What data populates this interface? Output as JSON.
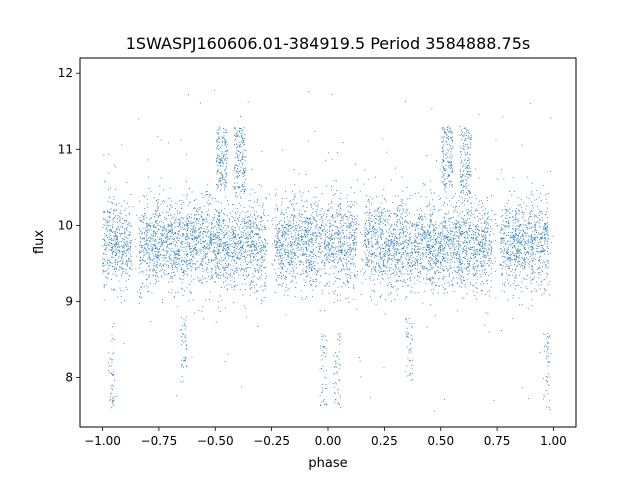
{
  "chart_data": {
    "type": "scatter",
    "title": "1SWASPJ160606.01-384919.5 Period 3584888.75s",
    "xlabel": "phase",
    "ylabel": "flux",
    "xlim": [
      -1.1,
      1.1
    ],
    "ylim": [
      7.35,
      12.2
    ],
    "xticks": [
      -1.0,
      -0.75,
      -0.5,
      -0.25,
      0.0,
      0.25,
      0.5,
      0.75,
      1.0
    ],
    "xtick_labels": [
      "−1.00",
      "−0.75",
      "−0.50",
      "−0.25",
      "0.00",
      "0.25",
      "0.50",
      "0.75",
      "1.00"
    ],
    "yticks": [
      8,
      9,
      10,
      11,
      12
    ],
    "ytick_labels": [
      "8",
      "9",
      "10",
      "11",
      "12"
    ],
    "grid": false,
    "marker_color": "#1f77b4",
    "series": [
      {
        "x_range": [
          -1.0,
          1.0
        ],
        "baseline_flux": 9.75,
        "scatter_flux": 0.3,
        "flux_min": 7.55,
        "flux_max": 11.85,
        "folded_period_in_phase": 1.0,
        "observing_nights_phase_centers": [
          -0.98,
          -0.91,
          -0.8,
          -0.73,
          -0.66,
          -0.59,
          -0.52,
          -0.45,
          -0.38,
          -0.31,
          -0.2,
          -0.13,
          -0.06,
          0.02,
          0.09,
          0.2,
          0.27,
          0.34,
          0.42,
          0.48,
          0.55,
          0.62,
          0.69,
          0.8,
          0.87,
          0.94
        ],
        "bright_excursions": [
          {
            "phase_center": -0.47,
            "flux": [
              10.5,
              11.3
            ]
          },
          {
            "phase_center": -0.39,
            "flux": [
              10.4,
              11.3
            ]
          },
          {
            "phase_center": 0.53,
            "flux": [
              10.5,
              11.3
            ]
          },
          {
            "phase_center": 0.61,
            "flux": [
              10.4,
              11.3
            ]
          }
        ],
        "faint_excursions": [
          {
            "phase_center": -0.96,
            "flux": [
              7.6,
              8.6
            ]
          },
          {
            "phase_center": -0.64,
            "flux": [
              7.9,
              8.8
            ]
          },
          {
            "phase_center": -0.02,
            "flux": [
              7.6,
              8.6
            ]
          },
          {
            "phase_center": 0.04,
            "flux": [
              7.6,
              8.6
            ]
          },
          {
            "phase_center": 0.36,
            "flux": [
              7.9,
              8.8
            ]
          },
          {
            "phase_center": 0.97,
            "flux": [
              7.6,
              8.6
            ]
          }
        ]
      }
    ]
  }
}
